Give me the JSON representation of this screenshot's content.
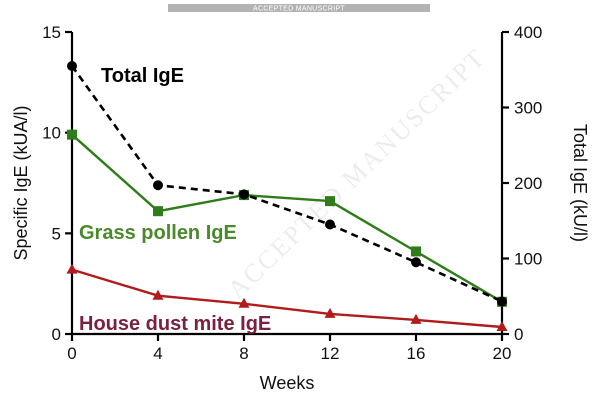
{
  "banner": {
    "text": "ACCEPTED MANUSCRIPT",
    "color": "#b3b3b3"
  },
  "watermark": "ACCEPTED MANUSCRIPT",
  "chart_data": {
    "type": "line",
    "x": [
      0,
      4,
      8,
      12,
      16,
      20
    ],
    "xticks": [
      "0",
      "4",
      "8",
      "12",
      "16",
      "20"
    ],
    "xlabel": "Weeks",
    "xlim": [
      0,
      20
    ],
    "ylabel_left": "Specific IgE (kUA/l)",
    "ylim_left": [
      0,
      15
    ],
    "yticks_left": [
      "0",
      "5",
      "10",
      "15"
    ],
    "ylabel_right": "Total IgE (kU/l)",
    "ylim_right": [
      0,
      400
    ],
    "yticks_right": [
      "0",
      "100",
      "200",
      "300",
      "400"
    ],
    "grid": false,
    "series": [
      {
        "name": "Total IgE",
        "axis": "right",
        "values": [
          355,
          197,
          185,
          145,
          95,
          43
        ],
        "color": "#000000",
        "marker": "circle",
        "line": "dashed"
      },
      {
        "name": "Grass pollen IgE",
        "axis": "left",
        "values": [
          9.9,
          6.1,
          6.9,
          6.6,
          4.1,
          1.6
        ],
        "color": "#2e7d1a",
        "marker": "square",
        "line": "solid"
      },
      {
        "name": "House dust mite IgE",
        "axis": "left",
        "values": [
          3.2,
          1.9,
          1.5,
          1.0,
          0.7,
          0.35
        ],
        "color": "#b01c1c",
        "marker": "triangle",
        "line": "solid"
      }
    ],
    "label_colors": {
      "Total IgE": "#000000",
      "Grass pollen IgE": "#4a8a2a",
      "House dust mite IgE": "#7a2040"
    }
  }
}
